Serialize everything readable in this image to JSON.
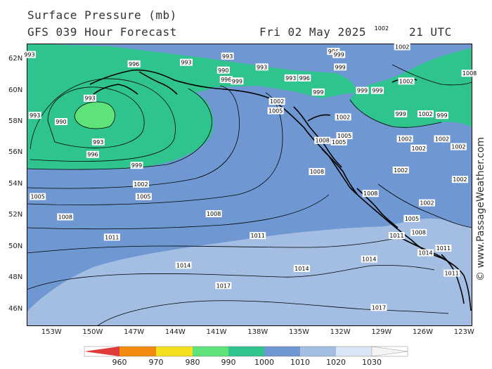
{
  "header": {
    "title": "Surface Pressure (mb)",
    "subtitle": "GFS 039 Hour Forecast",
    "date": "Fri 02 May 2025",
    "time": "21 UTC"
  },
  "copyright": "© www.PassageWeather.com",
  "latitudes": [
    "62N",
    "60N",
    "58N",
    "56N",
    "54N",
    "52N",
    "50N",
    "48N",
    "46N"
  ],
  "longitudes": [
    "153W",
    "150W",
    "147W",
    "144W",
    "141W",
    "138W",
    "135W",
    "132W",
    "129W",
    "126W",
    "123W"
  ],
  "colors": {
    "p960": "#e03a3a",
    "p970": "#f08a10",
    "p980": "#f5e020",
    "p990": "#5de37a",
    "p1000": "#2fc38e",
    "p1010": "#6f98d3",
    "p1020": "#a3bee2",
    "p1030": "#d8e6f5",
    "land": "#000000"
  },
  "colorbar": {
    "values": [
      "960",
      "970",
      "980",
      "990",
      "1000",
      "1010",
      "1020",
      "1030"
    ]
  },
  "isobar_labels": [
    {
      "text": "990",
      "lon": -152.3,
      "lat": 58.0
    },
    {
      "text": "993",
      "lon": -154.2,
      "lat": 58.4
    },
    {
      "text": "993",
      "lon": -150.2,
      "lat": 59.5
    },
    {
      "text": "993",
      "lon": -149.6,
      "lat": 56.7
    },
    {
      "text": "996",
      "lon": -150.0,
      "lat": 55.9
    },
    {
      "text": "999",
      "lon": -146.8,
      "lat": 55.2
    },
    {
      "text": "1002",
      "lon": -146.5,
      "lat": 54.0
    },
    {
      "text": "1005",
      "lon": -154.0,
      "lat": 53.2
    },
    {
      "text": "1005",
      "lon": -146.3,
      "lat": 53.2
    },
    {
      "text": "1008",
      "lon": -152.0,
      "lat": 51.9
    },
    {
      "text": "1008",
      "lon": -141.2,
      "lat": 52.1
    },
    {
      "text": "1011",
      "lon": -148.6,
      "lat": 50.6
    },
    {
      "text": "1011",
      "lon": -138.0,
      "lat": 50.7
    },
    {
      "text": "1014",
      "lon": -143.4,
      "lat": 48.8
    },
    {
      "text": "1014",
      "lon": -134.8,
      "lat": 48.6
    },
    {
      "text": "1014",
      "lon": -129.9,
      "lat": 49.2
    },
    {
      "text": "1017",
      "lon": -140.5,
      "lat": 47.5
    },
    {
      "text": "1017",
      "lon": -129.2,
      "lat": 46.1
    },
    {
      "text": "993",
      "lon": -154.6,
      "lat": 62.3
    },
    {
      "text": "996",
      "lon": -147.0,
      "lat": 61.7
    },
    {
      "text": "993",
      "lon": -143.2,
      "lat": 61.8
    },
    {
      "text": "993",
      "lon": -140.2,
      "lat": 62.2
    },
    {
      "text": "990",
      "lon": -140.5,
      "lat": 61.3
    },
    {
      "text": "993",
      "lon": -137.7,
      "lat": 61.5
    },
    {
      "text": "996",
      "lon": -140.3,
      "lat": 60.7
    },
    {
      "text": "999",
      "lon": -139.5,
      "lat": 60.6
    },
    {
      "text": "993",
      "lon": -135.6,
      "lat": 60.8
    },
    {
      "text": "996",
      "lon": -134.6,
      "lat": 60.8
    },
    {
      "text": "1002",
      "lon": -136.6,
      "lat": 59.3
    },
    {
      "text": "1005",
      "lon": -136.7,
      "lat": 58.7
    },
    {
      "text": "999",
      "lon": -133.6,
      "lat": 59.9
    },
    {
      "text": "996",
      "lon": -132.5,
      "lat": 62.5
    },
    {
      "text": "999",
      "lon": -132.1,
      "lat": 62.3
    },
    {
      "text": "999",
      "lon": -132.0,
      "lat": 61.5
    },
    {
      "text": "1002",
      "lon": -129.0,
      "lat": 64.0
    },
    {
      "text": "1002",
      "lon": -127.5,
      "lat": 62.8
    },
    {
      "text": "999",
      "lon": -130.4,
      "lat": 60.0
    },
    {
      "text": "999",
      "lon": -129.3,
      "lat": 60.0
    },
    {
      "text": "1002",
      "lon": -127.2,
      "lat": 60.6
    },
    {
      "text": "1002",
      "lon": -131.8,
      "lat": 58.3
    },
    {
      "text": "999",
      "lon": -127.6,
      "lat": 58.5
    },
    {
      "text": "1002",
      "lon": -125.8,
      "lat": 58.5
    },
    {
      "text": "999",
      "lon": -124.6,
      "lat": 58.4
    },
    {
      "text": "1005",
      "lon": -131.7,
      "lat": 57.1
    },
    {
      "text": "1005",
      "lon": -132.1,
      "lat": 56.7
    },
    {
      "text": "1008",
      "lon": -133.3,
      "lat": 56.8
    },
    {
      "text": "1002",
      "lon": -127.3,
      "lat": 56.9
    },
    {
      "text": "1002",
      "lon": -126.3,
      "lat": 56.3
    },
    {
      "text": "1002",
      "lon": -124.6,
      "lat": 56.9
    },
    {
      "text": "1002",
      "lon": -123.4,
      "lat": 56.4
    },
    {
      "text": "1002",
      "lon": -127.6,
      "lat": 54.9
    },
    {
      "text": "1008",
      "lon": -133.7,
      "lat": 54.8
    },
    {
      "text": "1008",
      "lon": -129.8,
      "lat": 53.4
    },
    {
      "text": "1002",
      "lon": -123.3,
      "lat": 54.3
    },
    {
      "text": "1002",
      "lon": -125.7,
      "lat": 52.8
    },
    {
      "text": "1005",
      "lon": -126.8,
      "lat": 51.8
    },
    {
      "text": "1011",
      "lon": -127.9,
      "lat": 50.7
    },
    {
      "text": "1008",
      "lon": -126.3,
      "lat": 50.9
    },
    {
      "text": "1011",
      "lon": -124.5,
      "lat": 49.9
    },
    {
      "text": "1014",
      "lon": -125.8,
      "lat": 49.6
    },
    {
      "text": "1011",
      "lon": -123.9,
      "lat": 48.3
    },
    {
      "text": "1008",
      "lon": -122.6,
      "lat": 61.1
    }
  ]
}
